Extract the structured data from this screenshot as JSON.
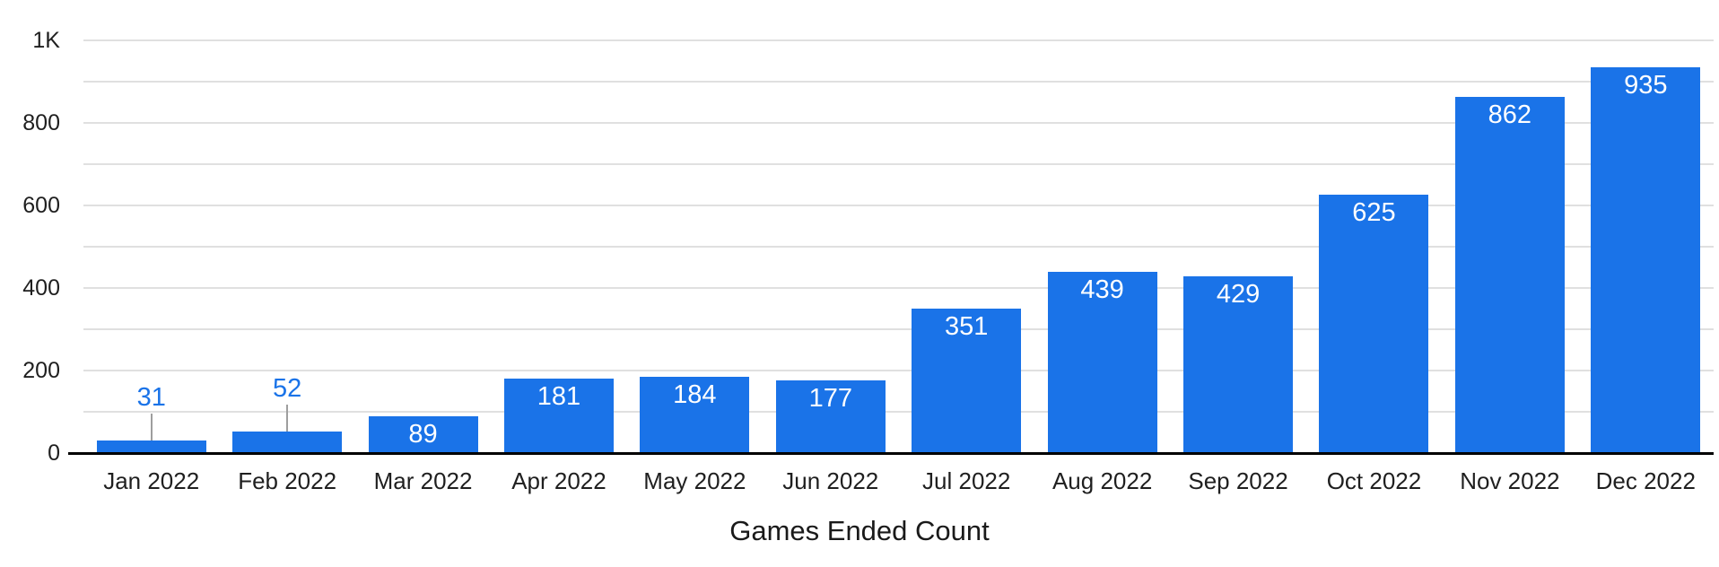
{
  "chart_data": {
    "type": "bar",
    "title": "Games Ended Count",
    "categories": [
      "Jan 2022",
      "Feb 2022",
      "Mar 2022",
      "Apr 2022",
      "May 2022",
      "Jun 2022",
      "Jul 2022",
      "Aug 2022",
      "Sep 2022",
      "Oct 2022",
      "Nov 2022",
      "Dec 2022"
    ],
    "values": [
      31,
      52,
      89,
      181,
      184,
      177,
      351,
      439,
      429,
      625,
      862,
      935
    ],
    "xlabel": "",
    "ylabel": "",
    "ylim": [
      0,
      1000
    ],
    "y_grid_step": 100,
    "y_tick_values": [
      0,
      200,
      400,
      600,
      800,
      1000
    ],
    "y_tick_labels": [
      "0",
      "200",
      "400",
      "600",
      "800",
      "1K"
    ],
    "grid": true,
    "legend_position": "none",
    "colors": {
      "bar": "#1a73e8",
      "inside_label": "#ffffff",
      "outside_label": "#1a73e8",
      "gridline": "#e0e0e0",
      "axis_line": "#000000",
      "tick_label": "#1f1f1f",
      "callout_stem": "#9e9e9e"
    }
  }
}
